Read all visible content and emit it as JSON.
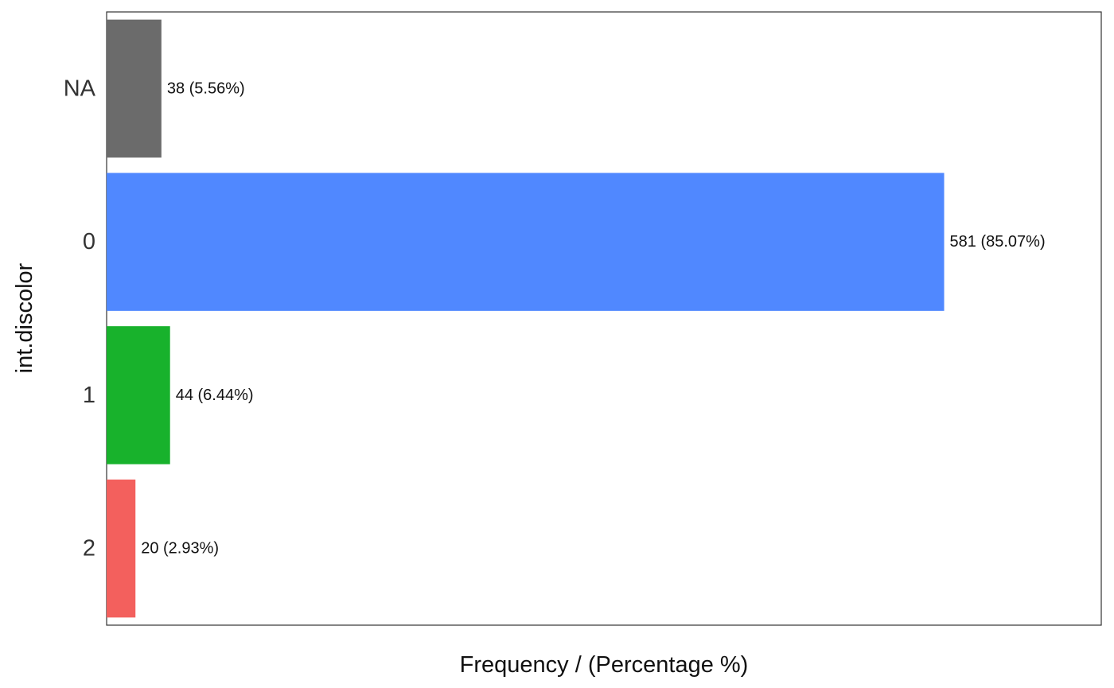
{
  "chart_data": {
    "type": "bar",
    "orientation": "horizontal",
    "title": "",
    "xlabel": "Frequency / (Percentage %)",
    "ylabel": "int.discolor",
    "categories": [
      "NA",
      "0",
      "1",
      "2"
    ],
    "values": [
      38,
      581,
      44,
      20
    ],
    "labels": [
      "38 (5.56%)",
      "581 (85.07%)",
      "44 (6.44%)",
      "20 (2.93%)"
    ],
    "colors": [
      "#6b6b6b",
      "#5088ff",
      "#18b22c",
      "#f3605d"
    ],
    "xlim": [
      0,
      690
    ],
    "grid": false,
    "x_ticks_shown": false,
    "legend": "none"
  }
}
